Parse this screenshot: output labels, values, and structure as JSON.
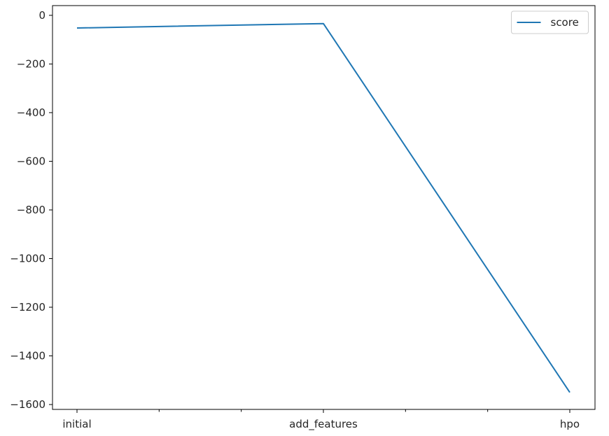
{
  "chart_data": {
    "type": "line",
    "categories": [
      "initial",
      "add_features",
      "hpo"
    ],
    "series": [
      {
        "name": "score",
        "values": [
          -52,
          -34,
          -1550
        ],
        "color": "#1f77b4"
      }
    ],
    "ylim": [
      -1620,
      40
    ],
    "yticks": [
      0,
      -200,
      -400,
      -600,
      -800,
      -1000,
      -1200,
      -1400,
      -1600
    ],
    "ytick_labels": [
      "0",
      "−200",
      "−400",
      "−600",
      "−800",
      "−1000",
      "−1200",
      "−1400",
      "−1600"
    ],
    "minor_xticks": 7,
    "legend": "top-right",
    "grid": false
  }
}
